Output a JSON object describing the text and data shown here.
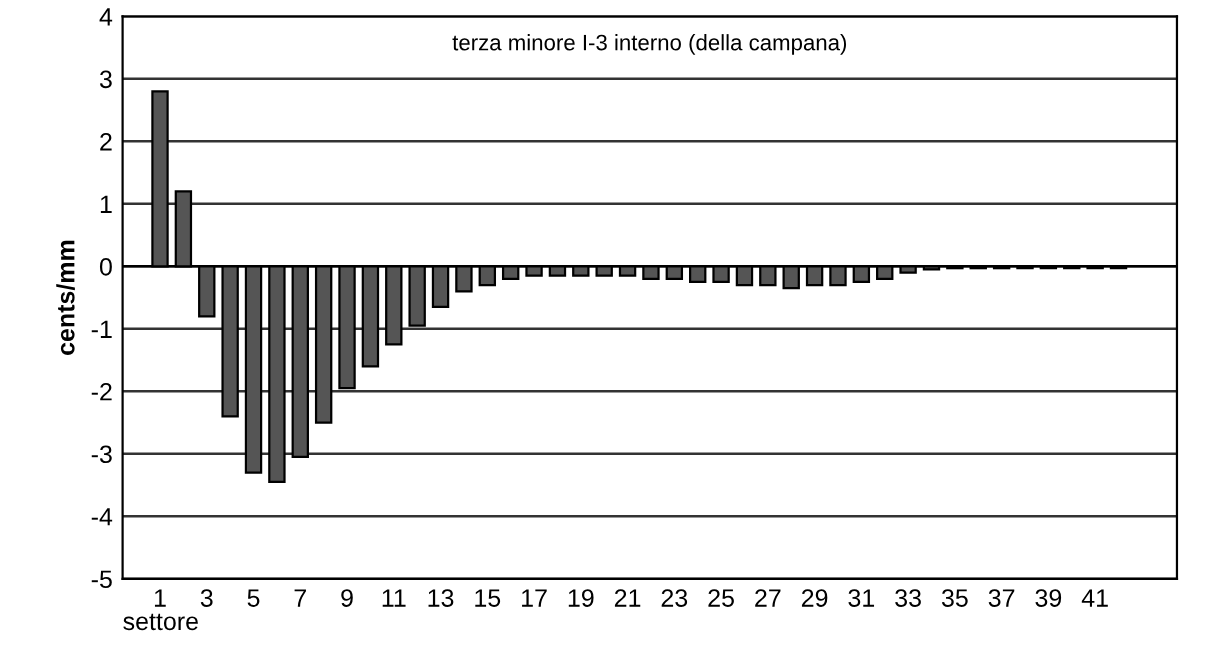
{
  "chart_data": {
    "type": "bar",
    "title": "terza minore I-3 interno (della campana)",
    "xlabel": "settore",
    "ylabel": "cents/mm",
    "categories": [
      "1",
      null,
      "3",
      null,
      "5",
      null,
      "7",
      null,
      "9",
      null,
      "11",
      null,
      "13",
      null,
      "15",
      null,
      "17",
      null,
      "19",
      null,
      "21",
      null,
      "23",
      null,
      "25",
      null,
      "27",
      null,
      "29",
      null,
      "31",
      null,
      "33",
      null,
      "35",
      null,
      "37",
      null,
      "39",
      null,
      "41",
      null
    ],
    "values": [
      2.8,
      1.2,
      -0.8,
      -2.4,
      -3.3,
      -3.45,
      -3.05,
      -2.5,
      -1.95,
      -1.6,
      -1.25,
      -0.95,
      -0.65,
      -0.4,
      -0.3,
      -0.2,
      -0.15,
      -0.15,
      -0.15,
      -0.15,
      -0.15,
      -0.2,
      -0.2,
      -0.25,
      -0.25,
      -0.3,
      -0.3,
      -0.35,
      -0.3,
      -0.3,
      -0.25,
      -0.2,
      -0.1,
      -0.05,
      -0.03,
      -0.03,
      -0.03,
      -0.03,
      -0.03,
      -0.03,
      -0.03,
      -0.03
    ],
    "color": "#555555",
    "ylim": [
      -5,
      4
    ],
    "yticks": [
      -5,
      -4,
      -3,
      -2,
      -1,
      0,
      1,
      2,
      3,
      4
    ],
    "grid": "y",
    "legend": false
  }
}
